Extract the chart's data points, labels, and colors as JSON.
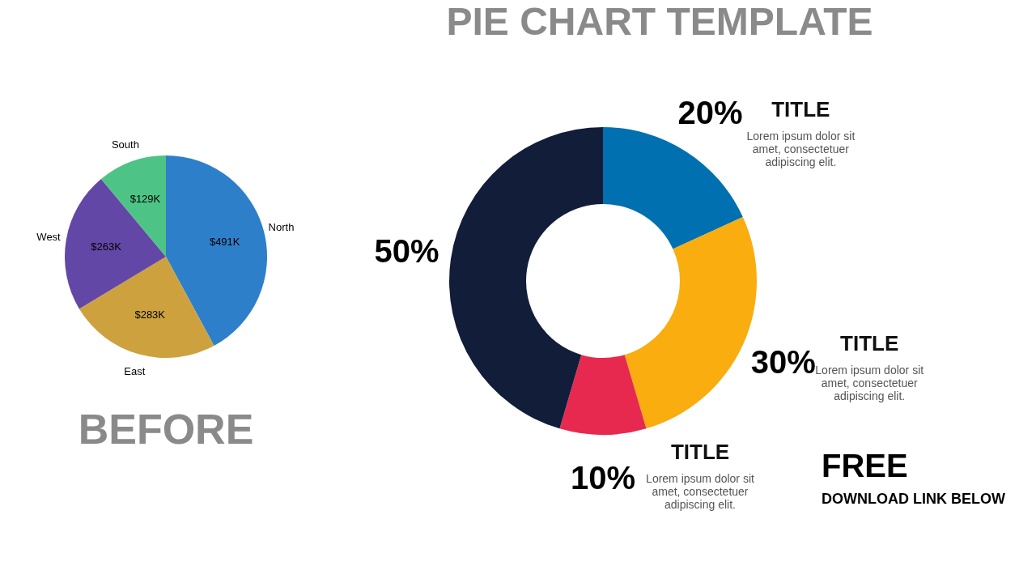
{
  "chart_data": [
    {
      "type": "pie",
      "categories": [
        "North",
        "East",
        "West",
        "South"
      ],
      "values": [
        491,
        283,
        263,
        129
      ],
      "value_labels": [
        "$491K",
        "$283K",
        "$263K",
        "$129K"
      ],
      "colors": [
        "#2e7fc9",
        "#cda23e",
        "#6347a6",
        "#4dc486"
      ],
      "legend": false,
      "annotations": [
        "BEFORE"
      ]
    },
    {
      "type": "donut",
      "title": "PIE CHART TEMPLATE",
      "categories": [
        "TITLE",
        "TITLE",
        "TITLE",
        null
      ],
      "values": [
        20,
        30,
        10,
        50
      ],
      "value_labels": [
        "20%",
        "30%",
        "10%",
        "50%"
      ],
      "colors": [
        "#0070b0",
        "#f9ad0e",
        "#e8294f",
        "#121d3a"
      ],
      "legend": false,
      "annotations": [
        "Lorem ipsum dolor sit\namet, consectetuer\nadipiscing elit.",
        "Lorem ipsum dolor sit\namet, consectetuer\nadipiscing elit.",
        "Lorem ipsum dolor sit\namet, consectetuer\nadipiscing elit.",
        "FREE",
        "DOWNLOAD LINK BELOW"
      ]
    }
  ]
}
